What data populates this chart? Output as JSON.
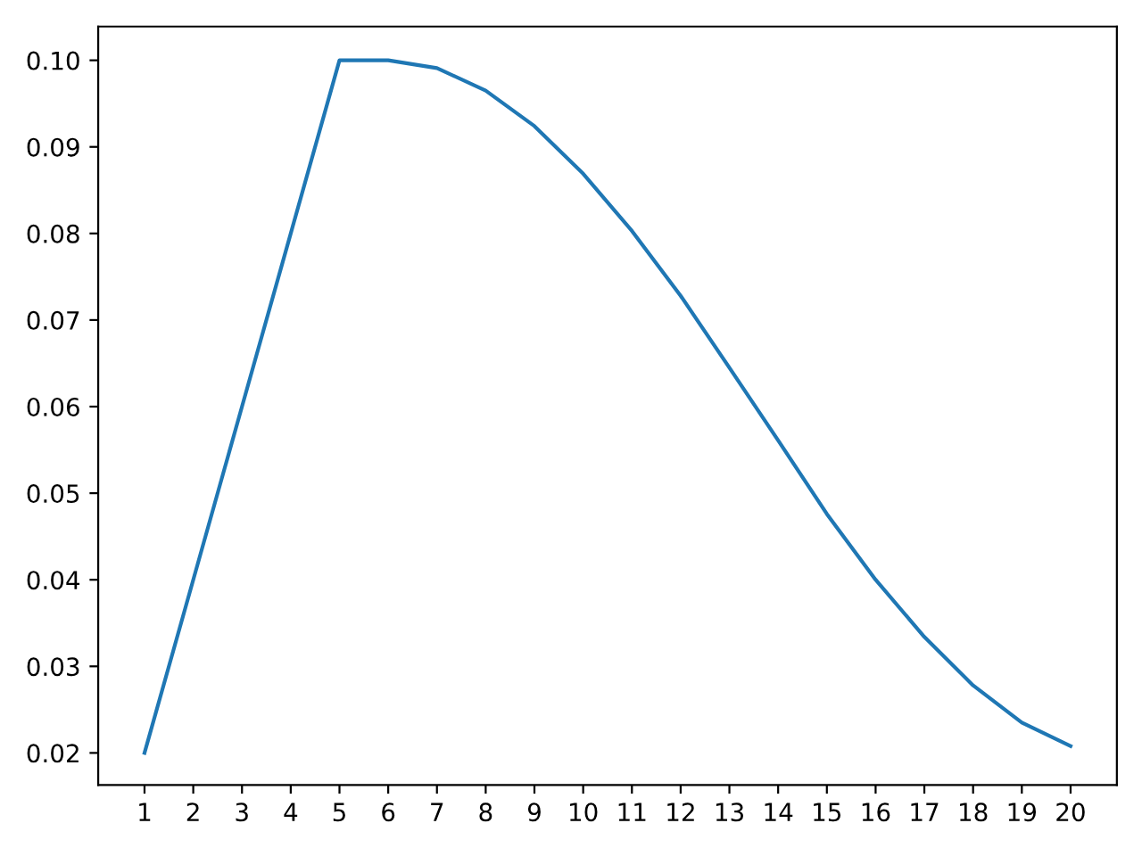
{
  "chart_data": {
    "type": "line",
    "x": [
      1,
      2,
      3,
      4,
      5,
      6,
      7,
      8,
      9,
      10,
      11,
      12,
      13,
      14,
      15,
      16,
      17,
      18,
      19,
      20
    ],
    "series": [
      {
        "color": "#1f77b4",
        "values": [
          0.02,
          0.04,
          0.06,
          0.08,
          0.1,
          0.1,
          0.0991,
          0.0965,
          0.0924,
          0.0869,
          0.0803,
          0.0728,
          0.0645,
          0.0561,
          0.0476,
          0.04,
          0.0334,
          0.0278,
          0.0235,
          0.0208
        ]
      }
    ],
    "xlim": [
      0.05,
      20.95
    ],
    "xticks": [
      1,
      2,
      3,
      4,
      5,
      6,
      7,
      8,
      9,
      10,
      11,
      12,
      13,
      14,
      15,
      16,
      17,
      18,
      19,
      20
    ],
    "ylim": [
      0.0163,
      0.1039
    ],
    "yticks": [
      {
        "value": 0.02,
        "label": "0.02"
      },
      {
        "value": 0.03,
        "label": "0.03"
      },
      {
        "value": 0.04,
        "label": "0.04"
      },
      {
        "value": 0.05,
        "label": "0.05"
      },
      {
        "value": 0.06,
        "label": "0.06"
      },
      {
        "value": 0.07,
        "label": "0.07"
      },
      {
        "value": 0.08,
        "label": "0.08"
      },
      {
        "value": 0.09,
        "label": "0.09"
      },
      {
        "value": 0.1,
        "label": "0.10"
      }
    ],
    "grid": false,
    "marker": "none",
    "line_style": "solid"
  }
}
